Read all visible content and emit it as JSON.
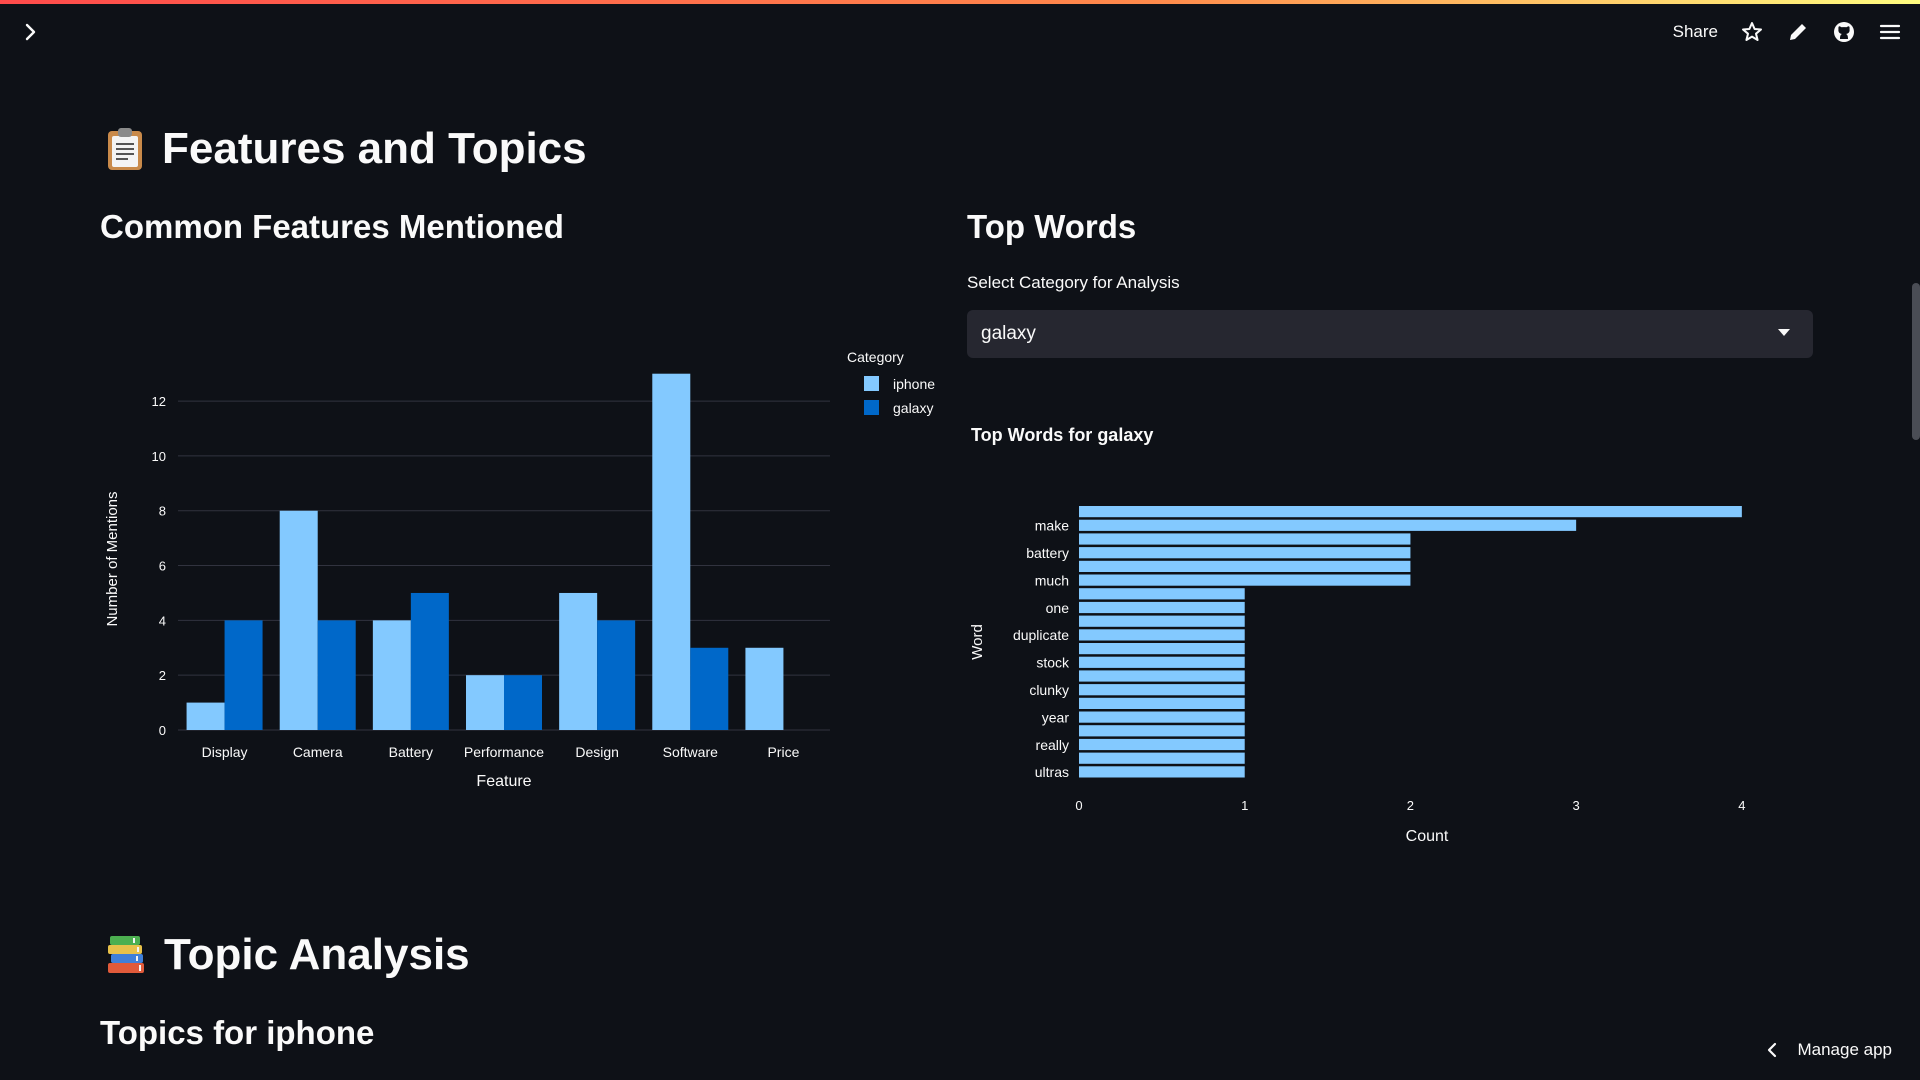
{
  "header": {
    "share_label": "Share",
    "icons": [
      "chevron-right-icon",
      "star-icon",
      "pencil-icon",
      "github-icon",
      "menu-icon"
    ]
  },
  "sections": {
    "features_title": "Features and Topics",
    "common_features_title": "Common Features Mentioned",
    "top_words_title": "Top Words",
    "topic_analysis_title": "Topic Analysis",
    "topics_for_title": "Topics for iphone"
  },
  "select": {
    "label": "Select Category for Analysis",
    "value": "galaxy"
  },
  "footer": {
    "manage_label": "Manage app"
  },
  "colors": {
    "background": "#0e1117",
    "iphone": "#83c9ff",
    "galaxy": "#0068c9",
    "grid": "#31333f"
  },
  "chart_data": [
    {
      "type": "bar",
      "xlabel": "Feature",
      "ylabel": "Number of Mentions",
      "legend_title": "Category",
      "legend_position": "top-right",
      "categories": [
        "Display",
        "Camera",
        "Battery",
        "Performance",
        "Design",
        "Software",
        "Price"
      ],
      "series": [
        {
          "name": "iphone",
          "values": [
            1,
            8,
            4,
            2,
            5,
            13,
            3
          ]
        },
        {
          "name": "galaxy",
          "values": [
            4,
            4,
            5,
            2,
            4,
            3,
            0
          ]
        }
      ],
      "yticks": [
        0,
        2,
        4,
        6,
        8,
        10,
        12
      ],
      "ylim": [
        0,
        13.5
      ],
      "grid": true
    },
    {
      "type": "bar",
      "orientation": "horizontal",
      "title": "Top Words for galaxy",
      "xlabel": "Count",
      "ylabel": "Word",
      "xticks": [
        0,
        1,
        2,
        3,
        4
      ],
      "xlim": [
        0,
        4.2
      ],
      "tick_labels": [
        "make",
        "battery",
        "much",
        "one",
        "duplicate",
        "stock",
        "clunky",
        "year",
        "really",
        "ultras"
      ],
      "values": [
        4,
        3,
        2,
        2,
        2,
        2,
        1,
        1,
        1,
        1,
        1,
        1,
        1,
        1,
        1,
        1,
        1,
        1,
        1,
        1
      ],
      "labeled_bar_indices": [
        1,
        3,
        5,
        7,
        9,
        11,
        13,
        15,
        17,
        19
      ],
      "grid": false
    }
  ]
}
